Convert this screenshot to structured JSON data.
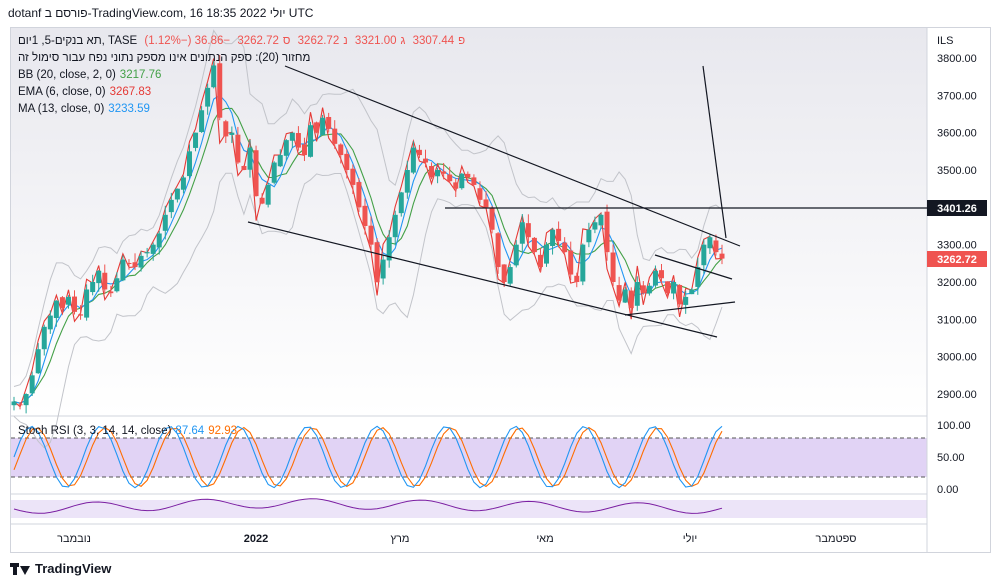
{
  "header": {
    "text": "dotanf פורסם ב-TradingView.com, 16 יולי 2022 18:35 UTC"
  },
  "symbol": {
    "name": "תא בנקים-5, 1יום, TASE",
    "o_label": "פ",
    "o": "3307.44",
    "h_label": "ג",
    "h": "3321.00",
    "l_label": "נ",
    "l": "3262.72",
    "c_label": "ס",
    "c": "3262.72",
    "change": "−36.86 (−1.12%)"
  },
  "volume_legend": "מחזור (20): ספק הנתונים אינו מספק נתוני נפח עבור סימול זה",
  "indicators": [
    {
      "label": "BB (20, close, 2, 0)",
      "values": "3217.76",
      "color": "#43a047"
    },
    {
      "label": "EMA (6, close, 0)",
      "values": "3267.83",
      "color": "#e53935"
    },
    {
      "label": "MA (13, close, 0)",
      "values": "3233.59",
      "color": "#2196f3"
    }
  ],
  "stoch": {
    "label": "Stoch RSI (3, 3, 14, 14, close)",
    "k": "87.64",
    "d": "92.93",
    "k_color": "#2196f3",
    "d_color": "#ff6d00"
  },
  "currency": "ILS",
  "price_badges": {
    "level": "3401.26",
    "last": "3262.72",
    "last_color": "#ef5350"
  },
  "chart_data": {
    "type": "candlestick",
    "price_axis": {
      "ticks": [
        "3800.00",
        "3700.00",
        "3600.00",
        "3500.00",
        "3300.00",
        "3200.00",
        "3100.00",
        "3000.00",
        "2900.00"
      ],
      "range": [
        2850,
        3830
      ]
    },
    "stoch_axis": {
      "ticks": [
        "100.00",
        "50.00",
        "0.00"
      ],
      "bands": [
        80,
        20
      ]
    },
    "time_axis": [
      "נובמבר",
      "2022",
      "מרץ",
      "מאי",
      "יולי",
      "ספטמבר"
    ],
    "close_path": [
      2880,
      2870,
      2900,
      2950,
      3020,
      3080,
      3110,
      3150,
      3130,
      3160,
      3120,
      3110,
      3180,
      3200,
      3230,
      3180,
      3170,
      3210,
      3260,
      3250,
      3240,
      3270,
      3280,
      3300,
      3330,
      3380,
      3420,
      3450,
      3480,
      3550,
      3600,
      3660,
      3720,
      3780,
      3640,
      3590,
      3600,
      3520,
      3500,
      3560,
      3430,
      3410,
      3460,
      3520,
      3540,
      3580,
      3600,
      3560,
      3540,
      3620,
      3600,
      3640,
      3610,
      3570,
      3540,
      3500,
      3460,
      3400,
      3350,
      3300,
      3200,
      3260,
      3320,
      3380,
      3440,
      3500,
      3560,
      3540,
      3520,
      3480,
      3500,
      3490,
      3470,
      3450,
      3490,
      3480,
      3460,
      3420,
      3400,
      3340,
      3240,
      3200,
      3240,
      3300,
      3360,
      3320,
      3280,
      3240,
      3300,
      3340,
      3310,
      3280,
      3220,
      3200,
      3300,
      3340,
      3360,
      3380,
      3280,
      3200,
      3150,
      3180,
      3130,
      3200,
      3170,
      3190,
      3230,
      3210,
      3170,
      3200,
      3140,
      3160,
      3180,
      3240,
      3300,
      3320,
      3280,
      3262.72
    ],
    "trend_lines": [
      {
        "name": "upper-channel",
        "from": [
          "2022-01",
          3780
        ],
        "to": [
          "2022-07",
          3290
        ]
      },
      {
        "name": "lower-channel",
        "from": [
          "2022-01",
          3360
        ],
        "to": [
          "2022-07",
          3050
        ]
      },
      {
        "name": "horizontal-resistance",
        "price": 3401.26
      },
      {
        "name": "triangle-lower",
        "price_from": 3110,
        "price_to": 3140
      }
    ],
    "series": [
      {
        "name": "BB (20, close, 2, 0)",
        "value": 3217.76
      },
      {
        "name": "EMA (6, close, 0)",
        "value": 3267.83
      },
      {
        "name": "MA (13, close, 0)",
        "value": 3233.59
      }
    ]
  },
  "footer": {
    "brand": "TradingView"
  }
}
